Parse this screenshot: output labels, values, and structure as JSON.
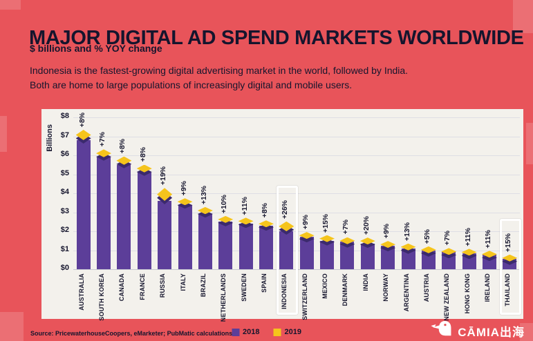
{
  "header": {
    "title": "MAJOR DIGITAL AD SPEND MARKETS WORLDWIDE",
    "subtitle": "$ billions and % YOY change",
    "description_line1": "Indonesia is the fastest-growing digital advertising market in the world, followed by India.",
    "description_line2": "Both are home to large populations of increasingly digital and mobile users."
  },
  "chart_data": {
    "type": "bar",
    "stacked": true,
    "title": "MAJOR DIGITAL AD SPEND MARKETS WORLDWIDE",
    "units": "$ billions",
    "ylabel": "Billions",
    "ylim": [
      0,
      8
    ],
    "yticks": [
      "$0",
      "$1",
      "$2",
      "$3",
      "$4",
      "$5",
      "$6",
      "$7",
      "$8"
    ],
    "categories": [
      "AUSTRALIA",
      "SOUTH KOREA",
      "CANADA",
      "FRANCE",
      "RUSSIA",
      "ITALY",
      "BRAZIL",
      "NETHERLANDS",
      "SWEDEN",
      "SPAIN",
      "INDONESIA",
      "SWITZERLAND",
      "MEXICO",
      "DENMARK",
      "INDIA",
      "NORWAY",
      "ARGENTINA",
      "AUSTRIA",
      "NEW ZEALAND",
      "HONG KONG",
      "IRELAND",
      "THAILAND"
    ],
    "series": [
      {
        "name": "2018",
        "values": [
          6.8,
          5.9,
          5.5,
          5.1,
          3.6,
          3.4,
          2.9,
          2.5,
          2.4,
          2.3,
          2.0,
          1.7,
          1.5,
          1.45,
          1.35,
          1.25,
          1.1,
          1.0,
          0.9,
          0.85,
          0.75,
          0.55
        ]
      },
      {
        "name": "2019 YOY growth %",
        "values": [
          8,
          7,
          8,
          8,
          19,
          9,
          13,
          10,
          11,
          8,
          26,
          9,
          15,
          7,
          20,
          9,
          13,
          5,
          7,
          11,
          11,
          15
        ]
      }
    ],
    "growth_labels": [
      "+8%",
      "+7%",
      "+8%",
      "+8%",
      "+19%",
      "+9%",
      "+13%",
      "+10%",
      "+11%",
      "+8%",
      "+26%",
      "+9%",
      "+15%",
      "+7%",
      "+20%",
      "+9%",
      "+13%",
      "+5%",
      "+7%",
      "+11%",
      "+11%",
      "+15%"
    ],
    "highlighted": [
      "INDONESIA",
      "THAILAND"
    ],
    "legend_position": "bottom",
    "grid": true,
    "colors": {
      "bar2018": "#5c3e99",
      "bar2018_dark": "#3b2a6d",
      "bar2019": "#f5c41c",
      "background": "#e8545a",
      "panel": "#f3f1ec",
      "text": "#15152d"
    }
  },
  "legend": {
    "items": [
      {
        "label": "2018",
        "color": "#5c3e99"
      },
      {
        "label": "2019",
        "color": "#f5c41c"
      }
    ]
  },
  "footer": {
    "source": "Source: PricewaterhouseCoopers, eMarketer; PubMatic calculations",
    "brand": "CĀMIA出海"
  }
}
